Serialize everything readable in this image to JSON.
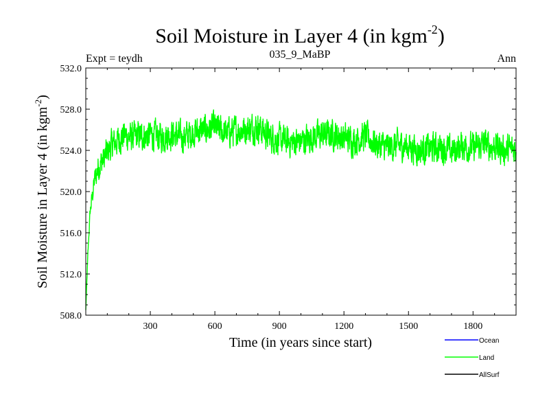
{
  "chart_data": {
    "type": "line",
    "title": "Soil Moisture in Layer 4 (in kgm",
    "title_sup": "-2",
    "title_end": ")",
    "left_label": "Expt = teydh",
    "center_label": "035_9_MaBP",
    "right_label": "Ann",
    "xlabel": "Time (in years since start)",
    "ylabel": "Soil Moisture in Layer 4 (in kgm",
    "ylabel_sup": "-2",
    "ylabel_end": ")",
    "xlim": [
      0,
      2000
    ],
    "ylim": [
      508.0,
      532.0
    ],
    "x_ticks": [
      300,
      600,
      900,
      1200,
      1500,
      1800
    ],
    "x_tick_labels": [
      "300",
      "600",
      "900",
      "1200",
      "1500",
      "1800"
    ],
    "y_ticks": [
      508.0,
      512.0,
      516.0,
      520.0,
      524.0,
      528.0,
      532.0
    ],
    "y_tick_labels": [
      "508.0",
      "512.0",
      "516.0",
      "520.0",
      "524.0",
      "528.0",
      "532.0"
    ],
    "legend": [
      {
        "name": "Ocean",
        "color": "#0000ff"
      },
      {
        "name": "Land",
        "color": "#00ff00"
      },
      {
        "name": "AllSurf",
        "color": "#000000"
      }
    ],
    "series": [
      {
        "name": "Land",
        "color": "#00ff00",
        "x": [
          0,
          10,
          20,
          30,
          40,
          60,
          80,
          100,
          120,
          150,
          180,
          210,
          250,
          300,
          350,
          400,
          450,
          500,
          550,
          600,
          650,
          700,
          750,
          800,
          850,
          900,
          950,
          1000,
          1050,
          1100,
          1150,
          1200,
          1250,
          1300,
          1350,
          1400,
          1450,
          1500,
          1550,
          1600,
          1650,
          1700,
          1750,
          1800,
          1850,
          1900,
          1950,
          2000
        ],
        "values": [
          508.5,
          514.0,
          518.0,
          519.5,
          521.0,
          522.5,
          523.0,
          523.8,
          524.5,
          525.0,
          525.5,
          525.2,
          525.4,
          525.5,
          525.3,
          525.6,
          525.2,
          525.8,
          526.0,
          526.2,
          525.7,
          525.9,
          526.1,
          526.3,
          525.4,
          525.0,
          524.8,
          524.9,
          525.3,
          525.5,
          525.6,
          525.2,
          525.0,
          525.4,
          524.6,
          524.3,
          524.5,
          524.4,
          524.0,
          524.2,
          524.3,
          523.9,
          524.5,
          524.2,
          524.6,
          524.4,
          524.0,
          524.2
        ]
      },
      {
        "name": "Ocean",
        "color": "#0000ff",
        "values": []
      },
      {
        "name": "AllSurf",
        "color": "#000000",
        "values": []
      }
    ]
  }
}
